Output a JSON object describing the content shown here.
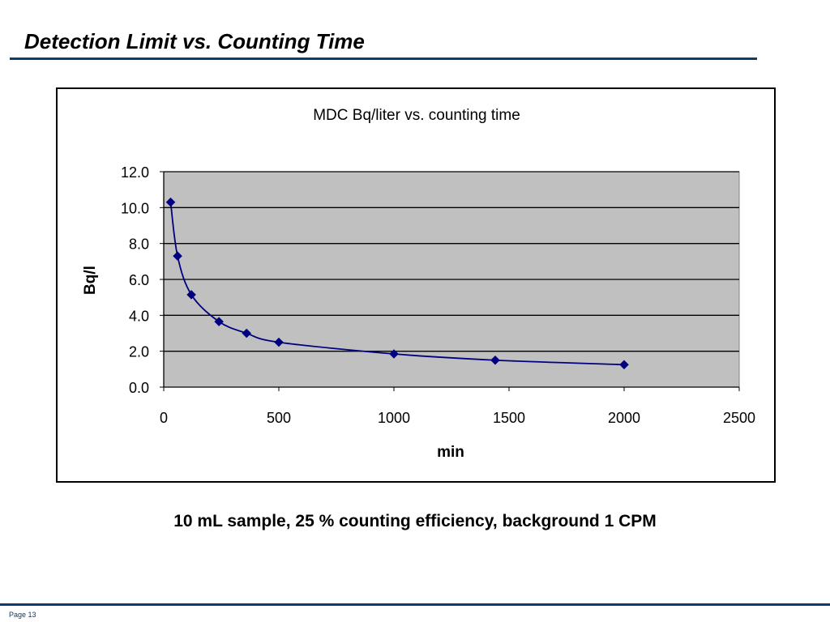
{
  "slide": {
    "title": "Detection Limit vs. Counting Time",
    "caption": "10 mL sample, 25 % counting efficiency, background 1 CPM",
    "page_label": "Page 13"
  },
  "colors": {
    "rule": "#0f3a6b",
    "series": "#000080",
    "plot_bg": "#c0c0c0",
    "grid": "#000000"
  },
  "chart_data": {
    "type": "scatter",
    "title": "MDC Bq/liter vs. counting time",
    "xlabel": "min",
    "ylabel": "Bq/l",
    "xlim": [
      0,
      2500
    ],
    "ylim": [
      0,
      12
    ],
    "xticks": [
      0,
      500,
      1000,
      1500,
      2000,
      2500
    ],
    "xtick_labels": [
      "0",
      "500",
      "1000",
      "1500",
      "2000",
      "2500"
    ],
    "yticks": [
      0,
      2,
      4,
      6,
      8,
      10,
      12
    ],
    "ytick_labels": [
      "0.0",
      "2.0",
      "4.0",
      "6.0",
      "8.0",
      "10.0",
      "12.0"
    ],
    "grid": true,
    "smoothed_line": true,
    "marker": "diamond",
    "series": [
      {
        "x": [
          30,
          60,
          120,
          240,
          360,
          500,
          1000,
          1440,
          2000
        ],
        "y": [
          10.3,
          7.3,
          5.15,
          3.65,
          3.0,
          2.5,
          1.85,
          1.5,
          1.25
        ]
      }
    ]
  }
}
